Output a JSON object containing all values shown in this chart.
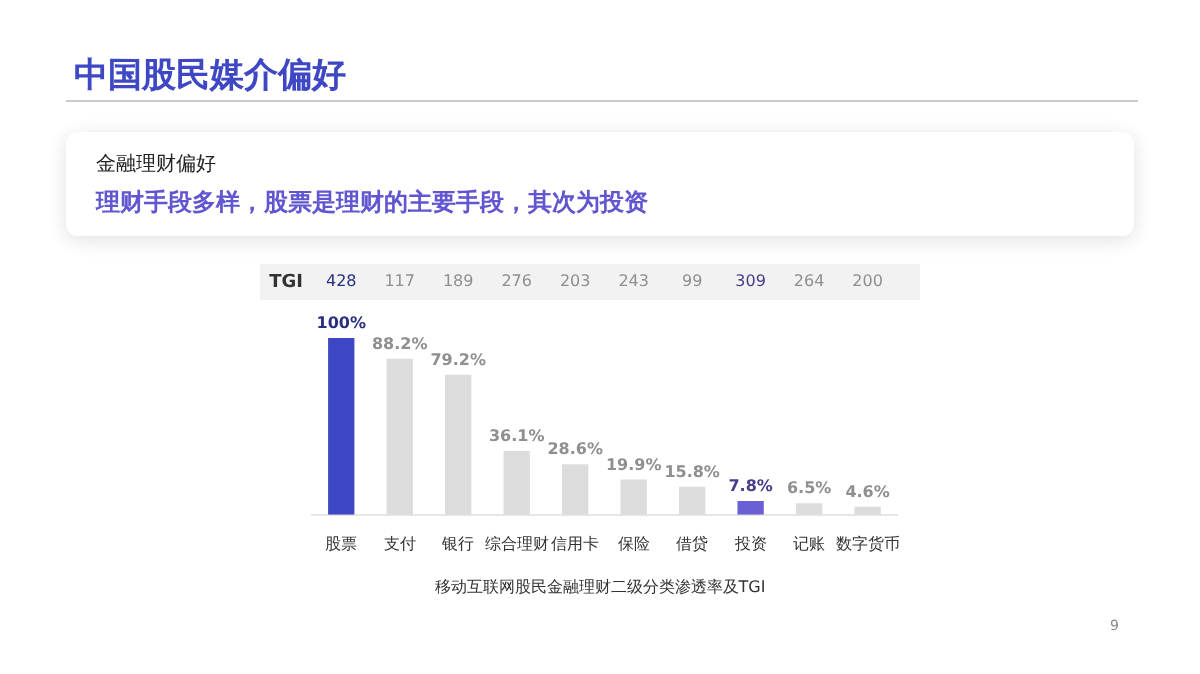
{
  "chart_data": {
    "type": "bar",
    "title": "中国股民媒介偏好",
    "subtitle": "金融理财偏好",
    "xlabel": "移动互联网股民金融理财二级分类渗透率及TGI",
    "categories": [
      "股票",
      "支付",
      "银行",
      "综合理财",
      "信用卡",
      "保险",
      "借贷",
      "投资",
      "记账",
      "数字货币"
    ],
    "values": [
      100,
      88.2,
      79.2,
      36.1,
      28.6,
      19.9,
      15.8,
      7.8,
      6.5,
      4.6
    ],
    "colors": [
      "#3f48c4",
      "#dcdcdc",
      "#dcdcdc",
      "#dcdcdc",
      "#dcdcdc",
      "#dcdcdc",
      "#dcdcdc",
      "#6b5fd6",
      "#dcdcdc",
      "#dcdcdc"
    ],
    "value_labels": [
      "100%",
      "88.2%",
      "79.2%",
      "36.1%",
      "28.6%",
      "19.9%",
      "15.8%",
      "7.8%",
      "6.5%",
      "4.6%"
    ],
    "annotations": [
      "理财手段多样，股票是理财的主要手段，其次为投资",
      "TGI",
      "428",
      "117",
      "189",
      "276",
      "203",
      "243",
      "99",
      "309",
      "264",
      "200",
      "9"
    ],
    "grid": false,
    "legend": false
  }
}
